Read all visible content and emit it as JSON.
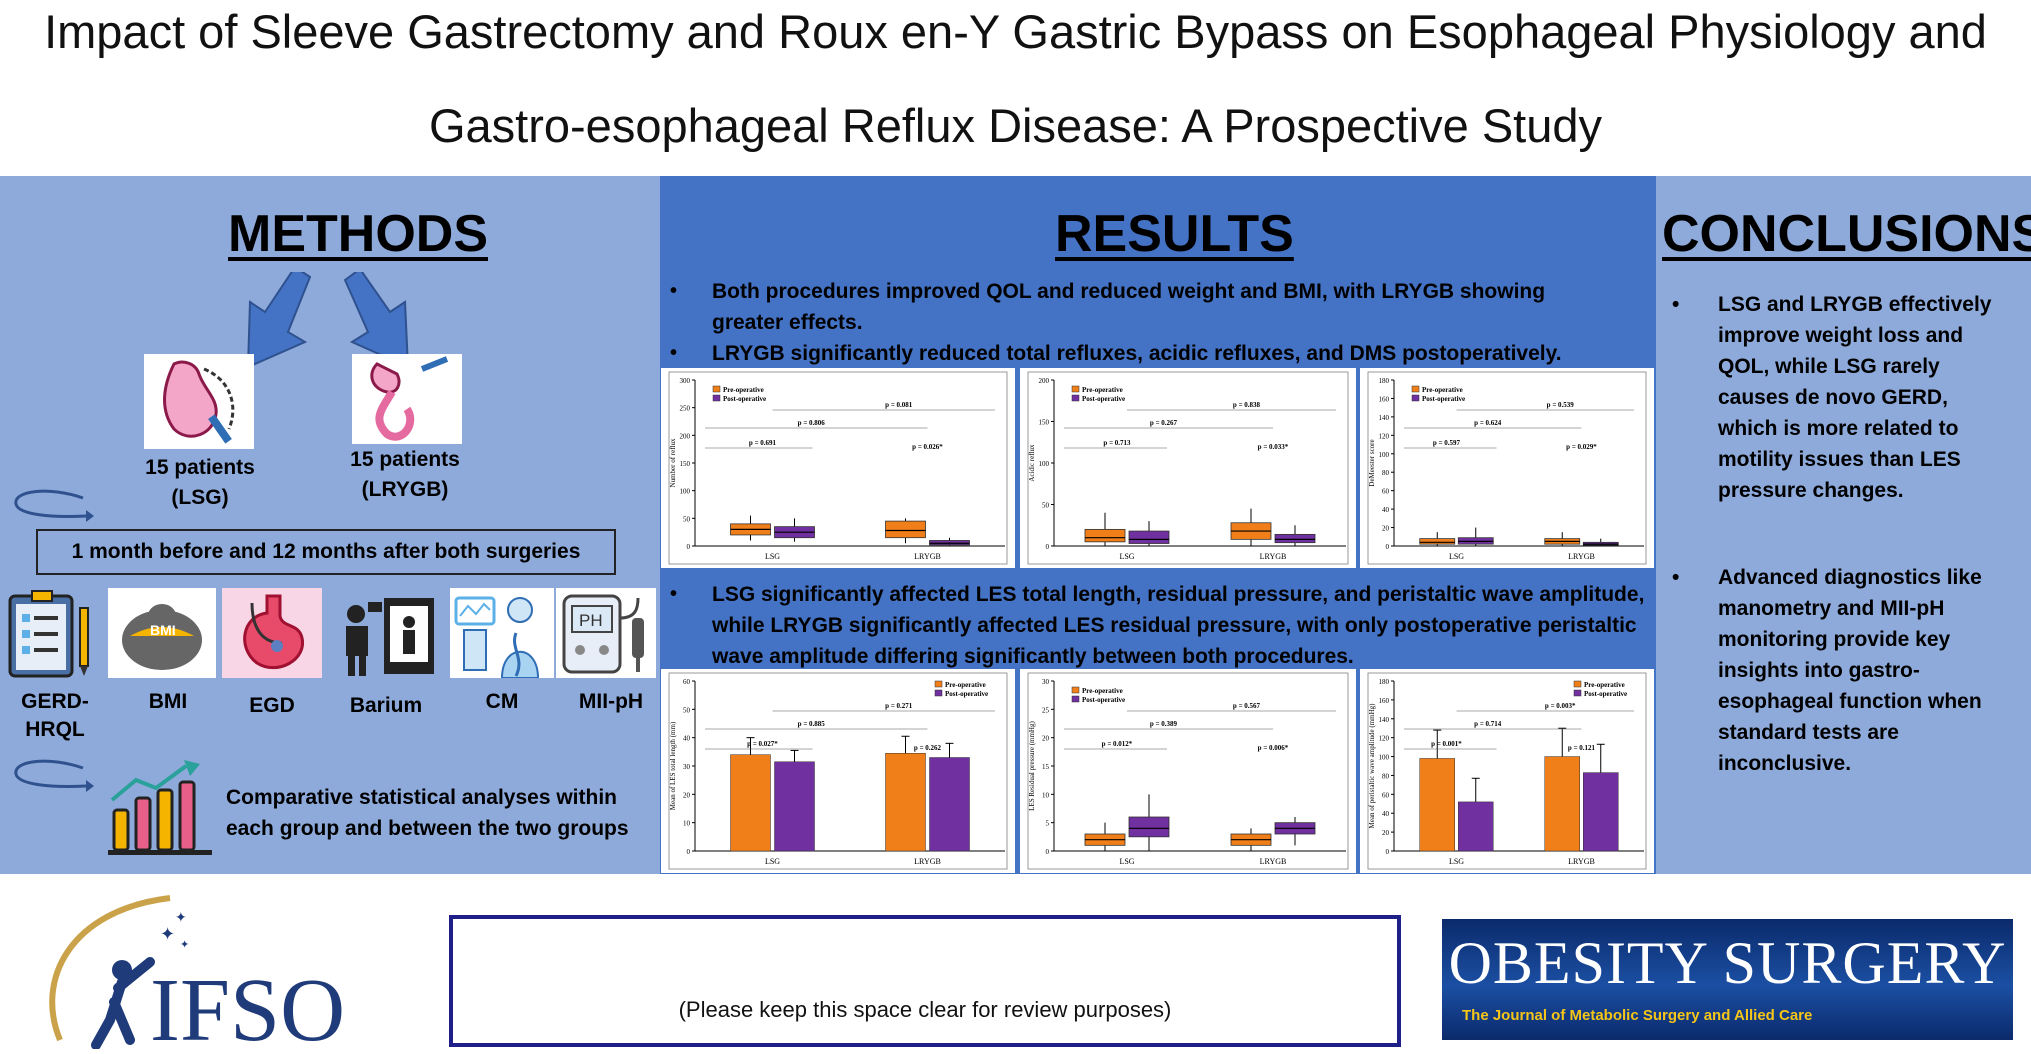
{
  "title": {
    "line1": "Impact of Sleeve Gastrectomy and Roux en-Y Gastric Bypass on Esophageal Physiology and",
    "line2": "Gastro-esophageal Reflux Disease: A Prospective Study"
  },
  "methods": {
    "heading": "METHODS",
    "group_lsg": {
      "count": "15 patients",
      "name": "(LSG)"
    },
    "group_lrygb": {
      "count": "15 patients",
      "name": "(LRYGB)"
    },
    "timepoints": "1 month before and 12 months after both surgeries",
    "assessments": [
      {
        "label": "GERD-",
        "label2": "HRQL",
        "icon": "questionnaire-icon"
      },
      {
        "label": "BMI",
        "icon": "scale-icon"
      },
      {
        "label": "EGD",
        "icon": "stomach-icon"
      },
      {
        "label": "Barium",
        "icon": "xray-icon"
      },
      {
        "label": "CM",
        "icon": "manometry-icon"
      },
      {
        "label": "MII-pH",
        "icon": "ph-monitor-icon"
      }
    ],
    "analysis_line1": "Comparative statistical analyses within",
    "analysis_line2": "each group and between the two groups"
  },
  "results": {
    "heading": "RESULTS",
    "bullets_top": [
      "Both procedures improved QOL and reduced weight and BMI, with LRYGB showing greater effects.",
      "LRYGB significantly reduced total refluxes, acidic refluxes, and DMS postoperatively."
    ],
    "bullet_bottom": "LSG significantly affected LES total length, residual pressure, and peristaltic wave amplitude, while LRYGB significantly affected LES residual pressure, with only postoperative peristaltic wave amplitude differing significantly between both procedures."
  },
  "conclusions": {
    "heading": "CONCLUSIONS",
    "bullets": [
      "LSG and LRYGB effectively improve weight loss and QOL, while LSG rarely causes de novo GERD, which is more related to motility issues than LES pressure changes.",
      "Advanced diagnostics like manometry and MII-pH monitoring provide key insights into gastro-esophageal function when standard tests are inconclusive."
    ]
  },
  "footer": {
    "placeholder": "(Please keep this space clear for review purposes)",
    "society": "IFSO",
    "journal_title": "OBESITY SURGERY",
    "journal_subtitle": "The Journal of Metabolic Surgery and Allied Care"
  },
  "colors": {
    "pre": "#f07f1a",
    "post": "#7030a0",
    "methods_bg": "#8eaadb",
    "results_bg": "#4472c4"
  },
  "chart_data": [
    {
      "type": "box",
      "ylabel": "Number of reflux",
      "categories": [
        "LSG",
        "LRYGB"
      ],
      "series": [
        {
          "name": "Pre-operative",
          "medians": [
            30,
            28
          ],
          "q1": [
            20,
            15
          ],
          "q3": [
            40,
            45
          ],
          "min": [
            10,
            5
          ],
          "max": [
            55,
            50
          ]
        },
        {
          "name": "Post-operative",
          "medians": [
            25,
            5
          ],
          "q1": [
            15,
            2
          ],
          "q3": [
            35,
            10
          ],
          "min": [
            8,
            0
          ],
          "max": [
            50,
            15
          ]
        }
      ],
      "ylim": [
        0,
        300
      ],
      "yticks": [
        "0",
        "50",
        "100",
        "150",
        "200",
        "250",
        "300"
      ],
      "annotations": [
        "p = 0.081",
        "p = 0.806",
        "p = 0.691",
        "p = 0.026*"
      ]
    },
    {
      "type": "box",
      "ylabel": "Acidic reflux",
      "categories": [
        "LSG",
        "LRYGB"
      ],
      "series": [
        {
          "name": "Pre-operative",
          "medians": [
            10,
            18
          ],
          "q1": [
            5,
            8
          ],
          "q3": [
            20,
            28
          ],
          "min": [
            0,
            0
          ],
          "max": [
            40,
            45
          ]
        },
        {
          "name": "Post-operative",
          "medians": [
            8,
            8
          ],
          "q1": [
            3,
            4
          ],
          "q3": [
            18,
            14
          ],
          "min": [
            0,
            0
          ],
          "max": [
            30,
            25
          ]
        }
      ],
      "ylim": [
        0,
        200
      ],
      "yticks": [
        "0",
        "50",
        "100",
        "150",
        "200"
      ],
      "annotations": [
        "p = 0.838",
        "p = 0.267",
        "p = 0.713",
        "p = 0.033*"
      ]
    },
    {
      "type": "box",
      "ylabel": "DeMeester score",
      "categories": [
        "LSG",
        "LRYGB"
      ],
      "series": [
        {
          "name": "Pre-operative",
          "medians": [
            4,
            5
          ],
          "q1": [
            2,
            2
          ],
          "q3": [
            8,
            8
          ],
          "min": [
            0,
            0
          ],
          "max": [
            15,
            15
          ]
        },
        {
          "name": "Post-operative",
          "medians": [
            5,
            2
          ],
          "q1": [
            2,
            1
          ],
          "q3": [
            9,
            4
          ],
          "min": [
            0,
            0
          ],
          "max": [
            20,
            8
          ]
        }
      ],
      "ylim": [
        0,
        180
      ],
      "yticks": [
        "0",
        "20",
        "40",
        "60",
        "80",
        "100",
        "120",
        "140",
        "160",
        "180"
      ],
      "annotations": [
        "p = 0.539",
        "p = 0.624",
        "p = 0.597",
        "p = 0.029*"
      ]
    },
    {
      "type": "bar",
      "ylabel": "Mean of LES total length (mm)",
      "categories": [
        "LSG",
        "LRYGB"
      ],
      "series": [
        {
          "name": "Pre-operative",
          "values": [
            34,
            34.5
          ],
          "errors": [
            6,
            6
          ]
        },
        {
          "name": "Post-operative",
          "values": [
            31.5,
            33
          ],
          "errors": [
            4,
            5
          ]
        }
      ],
      "ylim": [
        0,
        60
      ],
      "yticks": [
        "0",
        "10",
        "20",
        "30",
        "40",
        "50",
        "60"
      ],
      "annotations": [
        "p = 0.271",
        "p = 0.885",
        "p = 0.027*",
        "p = 0.262"
      ]
    },
    {
      "type": "box",
      "ylabel": "LES Residual pressure (mmHg)",
      "categories": [
        "LSG",
        "LRYGB"
      ],
      "series": [
        {
          "name": "Pre-operative",
          "medians": [
            2,
            2
          ],
          "q1": [
            1,
            1
          ],
          "q3": [
            3,
            3
          ],
          "min": [
            0,
            0
          ],
          "max": [
            5,
            4
          ]
        },
        {
          "name": "Post-operative",
          "medians": [
            4,
            4
          ],
          "q1": [
            2.5,
            3
          ],
          "q3": [
            6,
            5
          ],
          "min": [
            0,
            1
          ],
          "max": [
            10,
            6
          ]
        }
      ],
      "ylim": [
        0,
        30
      ],
      "yticks": [
        "0",
        "5",
        "10",
        "15",
        "20",
        "25",
        "30"
      ],
      "annotations": [
        "p = 0.567",
        "p = 0.389",
        "p = 0.012*",
        "p = 0.006*"
      ]
    },
    {
      "type": "bar",
      "ylabel": "Mean of peristaltic wave amplitude (mmHg)",
      "categories": [
        "LSG",
        "LRYGB"
      ],
      "series": [
        {
          "name": "Pre-operative",
          "values": [
            98,
            100
          ],
          "errors": [
            30,
            30
          ]
        },
        {
          "name": "Post-operative",
          "values": [
            52,
            83
          ],
          "errors": [
            25,
            30
          ]
        }
      ],
      "ylim": [
        0,
        180
      ],
      "yticks": [
        "0",
        "20",
        "40",
        "60",
        "80",
        "100",
        "120",
        "140",
        "160",
        "180"
      ],
      "annotations": [
        "p = 0.003*",
        "p = 0.714",
        "p = 0.001*",
        "p = 0.121"
      ]
    }
  ]
}
